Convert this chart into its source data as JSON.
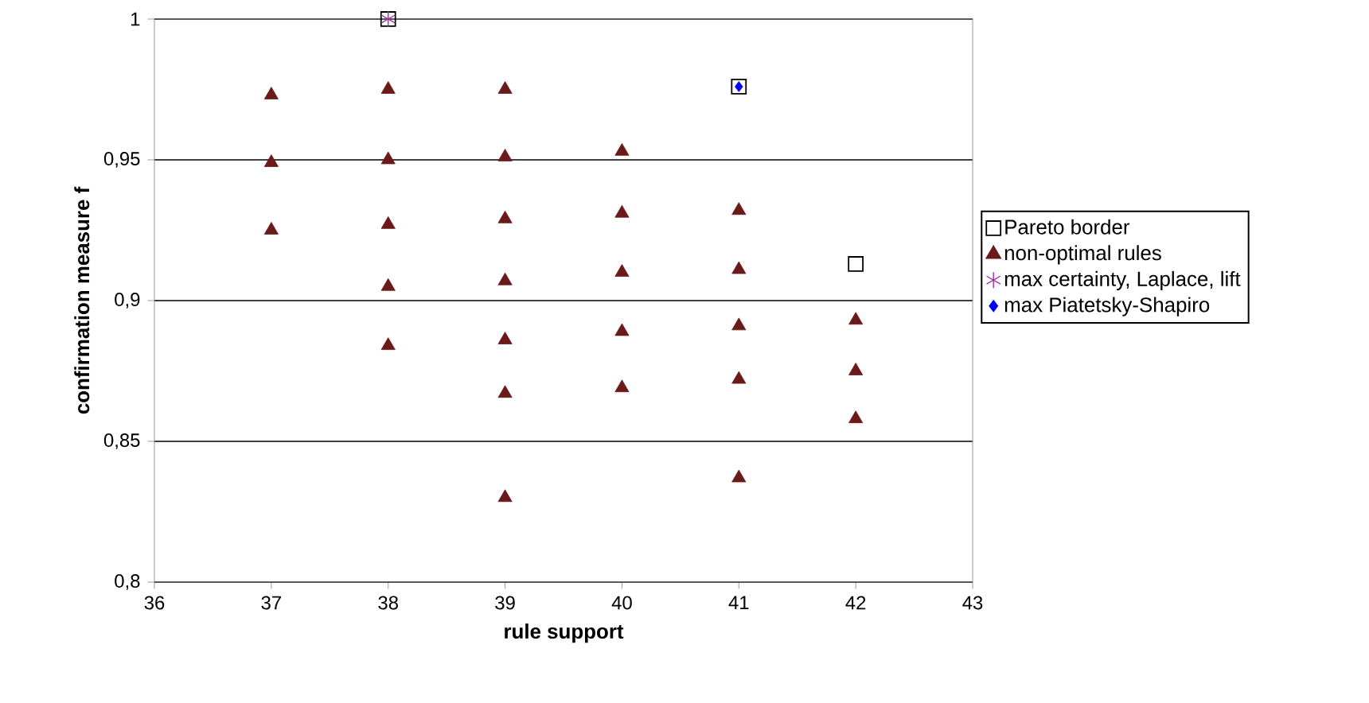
{
  "chart_data": {
    "type": "scatter",
    "xlabel": "rule support",
    "ylabel": "confirmation measure f",
    "xlim": [
      36,
      43
    ],
    "ylim": [
      0.8,
      1
    ],
    "xticks": [
      36,
      37,
      38,
      39,
      40,
      41,
      42,
      43
    ],
    "yticks": [
      {
        "value": 0.8,
        "label": "0,8"
      },
      {
        "value": 0.85,
        "label": "0,85"
      },
      {
        "value": 0.9,
        "label": "0,9"
      },
      {
        "value": 0.95,
        "label": "0,95"
      },
      {
        "value": 1,
        "label": "1"
      }
    ],
    "grid": "y",
    "legend": "right",
    "series": [
      {
        "name": "Pareto border",
        "color": "#000000",
        "marker": "square",
        "x": [
          38,
          41,
          42
        ],
        "values": [
          1.0,
          0.976,
          0.913
        ]
      },
      {
        "name": "non-optimal rules",
        "color": "#6b1a1a",
        "marker": "triangle",
        "x": [
          37,
          37,
          37,
          38,
          38,
          38,
          38,
          38,
          39,
          39,
          39,
          39,
          39,
          39,
          39,
          40,
          40,
          40,
          40,
          40,
          41,
          41,
          41,
          41,
          41,
          42,
          42,
          42
        ],
        "values": [
          0.973,
          0.949,
          0.925,
          0.975,
          0.95,
          0.927,
          0.905,
          0.884,
          0.975,
          0.951,
          0.929,
          0.907,
          0.886,
          0.867,
          0.83,
          0.953,
          0.931,
          0.91,
          0.889,
          0.869,
          0.932,
          0.911,
          0.891,
          0.872,
          0.837,
          0.893,
          0.875,
          0.858
        ]
      },
      {
        "name": "max certainty, Laplace, lift",
        "color": "#a030a0",
        "marker": "cross",
        "x": [
          38
        ],
        "values": [
          1.0
        ]
      },
      {
        "name": "max Piatetsky-Shapiro",
        "color": "#0000ff",
        "marker": "diamond",
        "x": [
          41
        ],
        "values": [
          0.976
        ]
      }
    ]
  }
}
